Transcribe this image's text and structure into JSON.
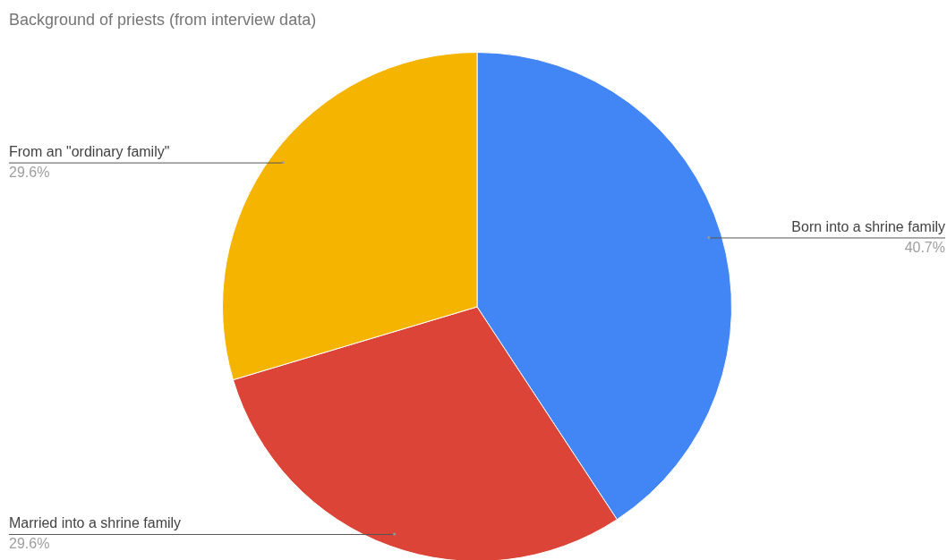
{
  "chart_data": {
    "type": "pie",
    "title": "Background of priests (from interview data)",
    "categories": [
      "Born into a shrine family",
      "Married into a shrine family",
      "From an \"ordinary family\""
    ],
    "values": [
      40.7,
      29.6,
      29.6
    ],
    "value_labels": [
      "40.7%",
      "29.6%",
      "29.6%"
    ],
    "colors": [
      "#4285f4",
      "#db4437",
      "#f4b400"
    ],
    "legend": false
  }
}
